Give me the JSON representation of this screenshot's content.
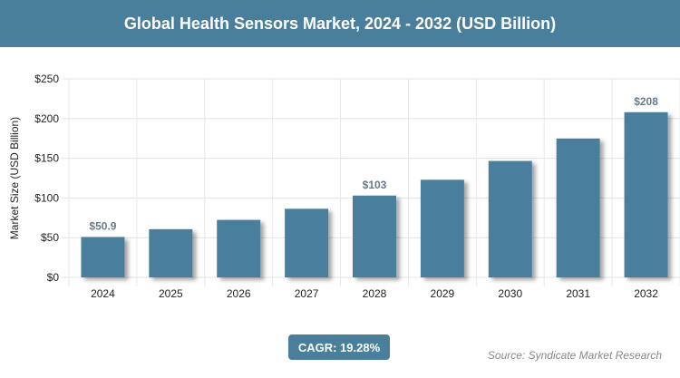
{
  "header": {
    "title": "Global Health Sensors Market, 2024 - 2032 (USD Billion)"
  },
  "chart_data": {
    "type": "bar",
    "title": "Global Health Sensors Market, 2024 - 2032 (USD Billion)",
    "xlabel": "",
    "ylabel": "Market Size (USD Billion)",
    "categories": [
      "2024",
      "2025",
      "2026",
      "2027",
      "2028",
      "2029",
      "2030",
      "2031",
      "2032"
    ],
    "values": [
      50.9,
      60.7,
      72.4,
      86.4,
      103,
      122.9,
      146.6,
      174.9,
      208
    ],
    "data_labels": {
      "2024": "$50.9",
      "2028": "$103",
      "2032": "$208"
    },
    "ylim": [
      0,
      250
    ],
    "yticks": [
      0,
      50,
      100,
      150,
      200,
      250
    ],
    "ytick_labels": [
      "$0",
      "$50",
      "$100",
      "$150",
      "$200",
      "$250"
    ],
    "grid": true,
    "bar_color": "#4a7f9c"
  },
  "footer": {
    "cagr": "CAGR: 19.28%",
    "source": "Source: Syndicate Market Research"
  }
}
